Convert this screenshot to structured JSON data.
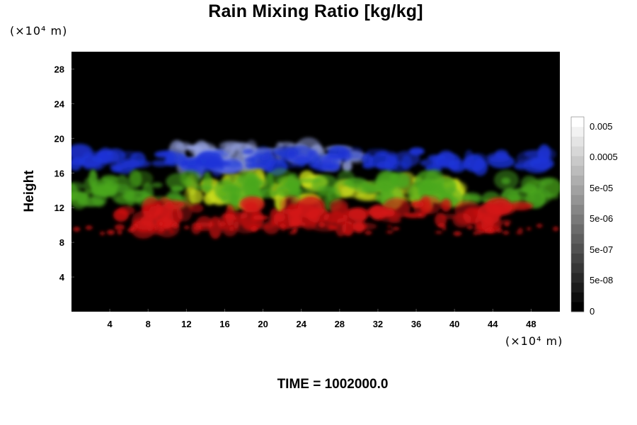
{
  "chart_data": {
    "type": "heatmap",
    "title": "Rain Mixing Ratio [kg/kg]",
    "ylabel": "Height",
    "x_unit": "(×10⁴ m)",
    "y_unit": "(×10⁴ m)",
    "footer": "TIME = 1002000.0",
    "xlim": [
      0,
      51
    ],
    "ylim": [
      0,
      30
    ],
    "xticks": [
      4,
      8,
      12,
      16,
      20,
      24,
      28,
      32,
      36,
      40,
      44,
      48
    ],
    "yticks": [
      4,
      8,
      12,
      16,
      20,
      24,
      28
    ],
    "background_color": "#000000",
    "colorbar": {
      "labels": [
        "0.005",
        "0.0005",
        "5e-05",
        "5e-06",
        "5e-07",
        "5e-08",
        "0"
      ],
      "levels": 20,
      "min_color": "#000000",
      "max_color": "#ffffff"
    },
    "layers": [
      {
        "color": "#9aa6e6",
        "x": [
          11,
          31
        ],
        "y": [
          16,
          20
        ]
      },
      {
        "color": "#1c34d8",
        "x": [
          0,
          51
        ],
        "y": [
          16,
          19
        ]
      },
      {
        "color": "#c8dc1c",
        "x": [
          12,
          41
        ],
        "y": [
          12,
          16
        ]
      },
      {
        "color": "#4aa81e",
        "x": [
          0,
          51
        ],
        "y": [
          12,
          16
        ]
      },
      {
        "color": "#d41414",
        "x": [
          5,
          47
        ],
        "y": [
          9,
          13
        ]
      }
    ]
  }
}
